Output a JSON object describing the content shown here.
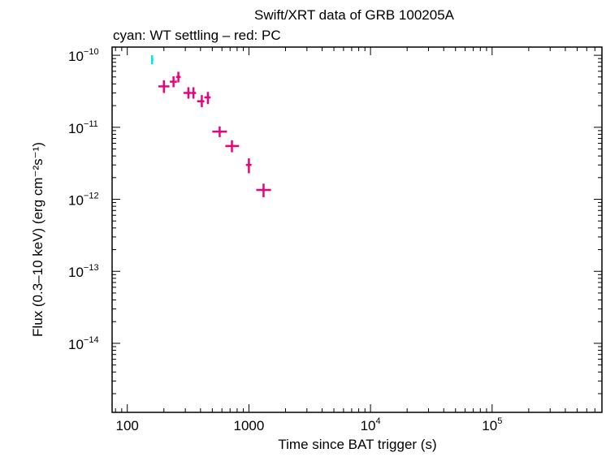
{
  "chart_data": {
    "type": "scatter",
    "title": "Swift/XRT data of GRB 100205A",
    "subtitle": "cyan: WT settling – red: PC",
    "xlabel": "Time since BAT trigger (s)",
    "ylabel": "Flux (0.3–10 keV) (erg cm⁻²s⁻¹)",
    "xscale": "log",
    "yscale": "log",
    "xlim": [
      75,
      800000
    ],
    "ylim": [
      1.1e-15,
      1.3e-10
    ],
    "x_ticks": [
      {
        "value": 100,
        "base": "100",
        "exp": ""
      },
      {
        "value": 1000,
        "base": "1000",
        "exp": ""
      },
      {
        "value": 10000,
        "base": "10",
        "exp": "4"
      },
      {
        "value": 100000,
        "base": "10",
        "exp": "5"
      }
    ],
    "y_ticks": [
      {
        "value": 1e-10,
        "base": "10",
        "exp": "−10"
      },
      {
        "value": 1e-11,
        "base": "10",
        "exp": "−11"
      },
      {
        "value": 1e-12,
        "base": "10",
        "exp": "−12"
      },
      {
        "value": 1e-13,
        "base": "10",
        "exp": "−13"
      },
      {
        "value": 1e-14,
        "base": "10",
        "exp": "−14"
      }
    ],
    "grid": false,
    "series": [
      {
        "color": "#00e5ee",
        "points": [
          {
            "x": 160,
            "x_lo": 157,
            "x_hi": 164,
            "y": 8.7e-11,
            "y_lo": 7.5e-11,
            "y_hi": 1e-10
          }
        ]
      },
      {
        "color": "#ee0077",
        "points": [
          {
            "x": 200,
            "x_lo": 180,
            "x_hi": 222,
            "y": 3.7e-11,
            "y_lo": 3e-11,
            "y_hi": 4.5e-11
          },
          {
            "x": 240,
            "x_lo": 224,
            "x_hi": 256,
            "y": 4.3e-11,
            "y_lo": 3.6e-11,
            "y_hi": 5.1e-11
          },
          {
            "x": 263,
            "x_lo": 252,
            "x_hi": 275,
            "y": 5e-11,
            "y_lo": 4.2e-11,
            "y_hi": 5.9e-11
          },
          {
            "x": 318,
            "x_lo": 290,
            "x_hi": 335,
            "y": 3e-11,
            "y_lo": 2.5e-11,
            "y_hi": 3.6e-11
          },
          {
            "x": 350,
            "x_lo": 335,
            "x_hi": 368,
            "y": 3e-11,
            "y_lo": 2.5e-11,
            "y_hi": 3.6e-11
          },
          {
            "x": 410,
            "x_lo": 375,
            "x_hi": 430,
            "y": 2.3e-11,
            "y_lo": 1.9e-11,
            "y_hi": 2.8e-11
          },
          {
            "x": 460,
            "x_lo": 430,
            "x_hi": 485,
            "y": 2.6e-11,
            "y_lo": 2.1e-11,
            "y_hi": 3.1e-11
          },
          {
            "x": 575,
            "x_lo": 500,
            "x_hi": 660,
            "y": 8.7e-12,
            "y_lo": 7.3e-12,
            "y_hi": 1.03e-11
          },
          {
            "x": 725,
            "x_lo": 640,
            "x_hi": 830,
            "y": 5.5e-12,
            "y_lo": 4.5e-12,
            "y_hi": 6.6e-12
          },
          {
            "x": 1000,
            "x_lo": 945,
            "x_hi": 1050,
            "y": 3e-12,
            "y_lo": 2.3e-12,
            "y_hi": 3.7e-12
          },
          {
            "x": 1320,
            "x_lo": 1150,
            "x_hi": 1520,
            "y": 1.35e-12,
            "y_lo": 1.07e-12,
            "y_hi": 1.65e-12
          }
        ]
      }
    ]
  }
}
